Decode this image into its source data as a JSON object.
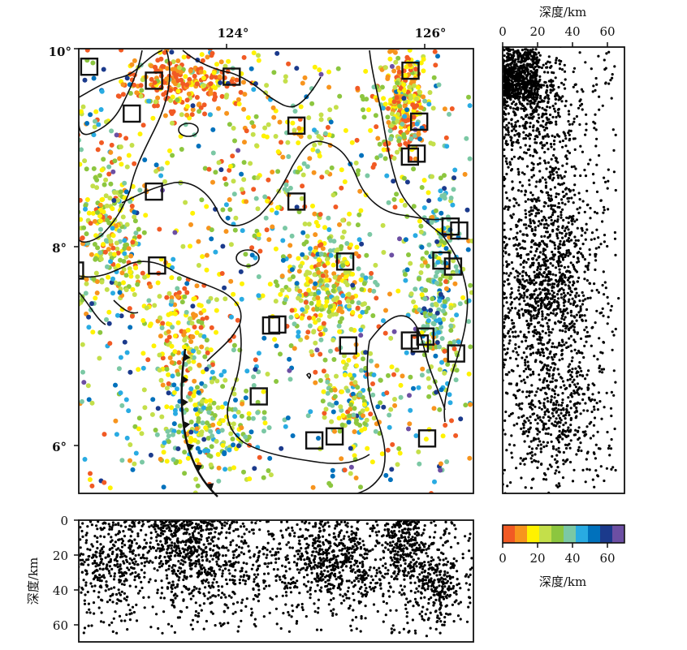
{
  "map": {
    "lon_ticks": [
      {
        "value": 124,
        "label": "124°"
      },
      {
        "value": 126,
        "label": "126°"
      }
    ],
    "lat_ticks": [
      {
        "value": 10,
        "label": "10°"
      },
      {
        "value": 8,
        "label": "8°"
      },
      {
        "value": 6,
        "label": "6°"
      }
    ],
    "lon_range": [
      120.1,
      126.5
    ],
    "lat_range": [
      5.55,
      10.0
    ],
    "stations": [
      [
        120.27,
        9.82
      ],
      [
        121.32,
        9.68
      ],
      [
        122.58,
        9.72
      ],
      [
        125.48,
        9.78
      ],
      [
        120.96,
        9.35
      ],
      [
        123.63,
        9.23
      ],
      [
        125.62,
        9.27
      ],
      [
        125.58,
        8.95
      ],
      [
        125.47,
        8.92
      ],
      [
        121.32,
        8.57
      ],
      [
        123.63,
        8.47
      ],
      [
        126.13,
        8.22
      ],
      [
        126.27,
        8.18
      ],
      [
        120.04,
        7.78
      ],
      [
        121.37,
        7.83
      ],
      [
        124.42,
        7.87
      ],
      [
        125.98,
        7.88
      ],
      [
        126.17,
        7.82
      ],
      [
        123.22,
        7.23
      ],
      [
        123.32,
        7.24
      ],
      [
        125.47,
        7.08
      ],
      [
        125.63,
        7.05
      ],
      [
        125.72,
        7.12
      ],
      [
        124.47,
        7.03
      ],
      [
        126.22,
        6.95
      ],
      [
        123.02,
        6.52
      ],
      [
        123.92,
        6.08
      ],
      [
        124.25,
        6.12
      ],
      [
        125.75,
        6.1
      ]
    ]
  },
  "chart_data": [
    {
      "type": "scatter",
      "name": "map-epicenters",
      "description_units": "longitude, latitude, depth (km)",
      "clusters": [
        {
          "lon": 121.8,
          "lat": 9.65,
          "spread": [
            0.8,
            0.25
          ],
          "n": 240,
          "depth_mean": 8
        },
        {
          "lon": 125.35,
          "lat": 9.5,
          "spread": [
            0.35,
            0.45
          ],
          "n": 260,
          "depth_mean": 14
        },
        {
          "lon": 124.1,
          "lat": 7.6,
          "spread": [
            0.6,
            0.5
          ],
          "n": 320,
          "depth_mean": 22
        },
        {
          "lon": 122.2,
          "lat": 6.2,
          "spread": [
            0.8,
            0.45
          ],
          "n": 220,
          "depth_mean": 30
        },
        {
          "lon": 120.6,
          "lat": 8.2,
          "spread": [
            0.45,
            0.8
          ],
          "n": 240,
          "depth_mean": 25
        },
        {
          "lon": 125.9,
          "lat": 7.6,
          "spread": [
            0.35,
            0.9
          ],
          "n": 260,
          "depth_mean": 35
        },
        {
          "lon": 123.4,
          "lat": 8.9,
          "spread": [
            1.5,
            0.8
          ],
          "n": 200,
          "depth_mean": 20
        },
        {
          "lon": 121.8,
          "lat": 7.2,
          "spread": [
            0.6,
            0.6
          ],
          "n": 180,
          "depth_mean": 18
        },
        {
          "lon": 124.6,
          "lat": 6.5,
          "spread": [
            0.6,
            0.4
          ],
          "n": 140,
          "depth_mean": 28
        }
      ]
    },
    {
      "type": "scatter",
      "name": "lat-depth-section",
      "xlabel": "深度/km",
      "xlim": [
        0,
        70
      ],
      "x_ticks": [
        0,
        20,
        40,
        60
      ],
      "ylim": [
        5.55,
        10.0
      ]
    },
    {
      "type": "scatter",
      "name": "lon-depth-section",
      "ylabel": "深度/km",
      "ylim": [
        0,
        70
      ],
      "y_ticks": [
        0,
        20,
        40,
        60
      ],
      "xlim": [
        120.1,
        126.5
      ]
    }
  ],
  "colorbar": {
    "label": "深度/km",
    "ticks": [
      0,
      20,
      40,
      60
    ],
    "range": [
      0,
      70
    ],
    "colors": [
      "#f15a24",
      "#f7941d",
      "#fff200",
      "#c4df4a",
      "#8cc63f",
      "#7bc8a4",
      "#29abe2",
      "#0071bc",
      "#1b3a8c",
      "#6c4fa3"
    ]
  },
  "labels": {
    "map_lon_124": "124°",
    "map_lon_126": "126°",
    "map_lat_10": "10°",
    "map_lat_8": "8°",
    "map_lat_6": "6°",
    "right_title": "深度/km",
    "right_t0": "0",
    "right_t20": "20",
    "right_t40": "40",
    "right_t60": "60",
    "bottom_ylabel": "深度/km",
    "bottom_t0": "0",
    "bottom_t20": "20",
    "bottom_t40": "40",
    "bottom_t60": "60",
    "cb_t0": "0",
    "cb_t20": "20",
    "cb_t40": "40",
    "cb_t60": "60",
    "cb_title": "深度/km"
  }
}
